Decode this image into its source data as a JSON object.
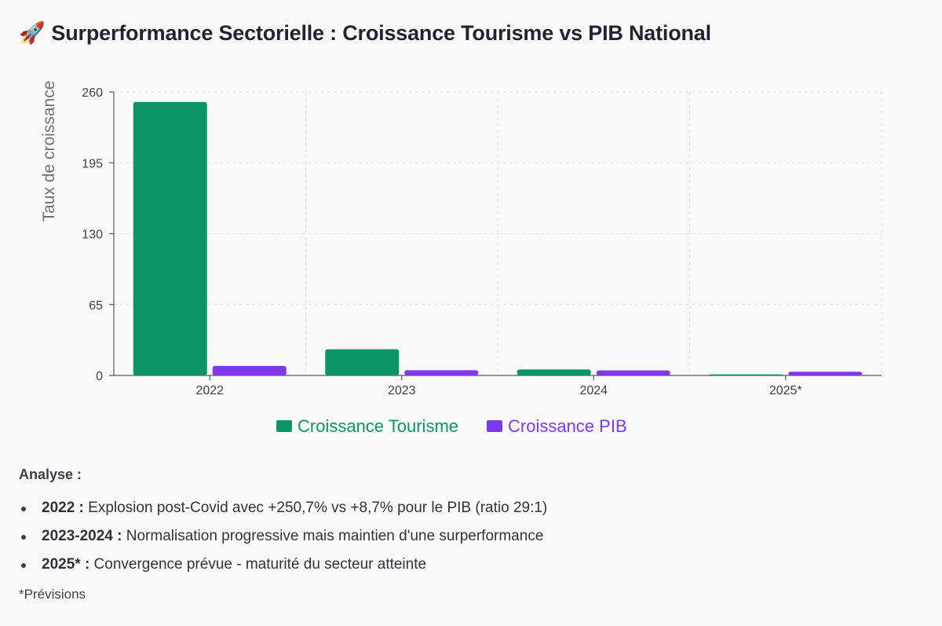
{
  "title": {
    "icon": "rocket-icon",
    "icon_glyph": "🚀",
    "text": "Surperformance Sectorielle : Croissance Tourisme vs PIB National"
  },
  "chart_data": {
    "type": "bar",
    "categories": [
      "2022",
      "2023",
      "2024",
      "2025*"
    ],
    "series": [
      {
        "name": "Croissance Tourisme",
        "color": "#0d9466",
        "values": [
          250.7,
          24,
          5.5,
          1
        ]
      },
      {
        "name": "Croissance PIB",
        "color": "#7c3aed",
        "values": [
          8.7,
          4.8,
          4.6,
          3.4
        ]
      }
    ],
    "ylabel": "Taux de croissance",
    "xlabel": "",
    "ylim": [
      0,
      260
    ],
    "yticks": [
      0,
      65,
      130,
      195,
      260
    ],
    "grid": true,
    "legend_position": "bottom-center"
  },
  "analysis": {
    "heading": "Analyse :",
    "items": [
      {
        "lead": "2022 :",
        "text": " Explosion post-Covid avec +250,7% vs +8,7% pour le PIB (ratio 29:1)"
      },
      {
        "lead": "2023-2024 :",
        "text": " Normalisation progressive mais maintien d'une surperformance"
      },
      {
        "lead": "2025* :",
        "text": " Convergence prévue - maturité du secteur atteinte"
      }
    ],
    "footnote": "*Prévisions"
  }
}
